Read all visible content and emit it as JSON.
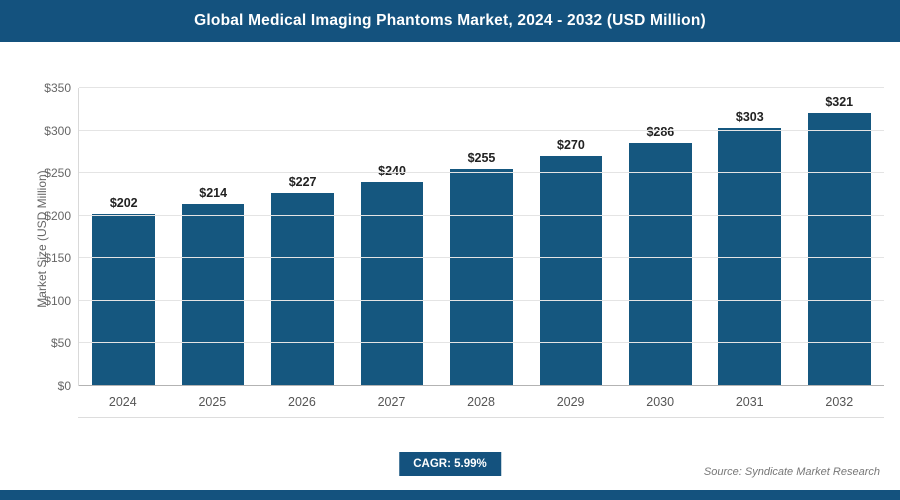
{
  "header": {
    "title": "Global Medical Imaging Phantoms Market, 2024 - 2032 (USD Million)"
  },
  "chart_data": {
    "type": "bar",
    "title": "Global Medical Imaging Phantoms Market, 2024 - 2032 (USD Million)",
    "categories": [
      "2024",
      "2025",
      "2026",
      "2027",
      "2028",
      "2029",
      "2030",
      "2031",
      "2032"
    ],
    "values": [
      202,
      214,
      227,
      240,
      255,
      270,
      286,
      303,
      321
    ],
    "value_labels": [
      "$202",
      "$214",
      "$227",
      "$240",
      "$255",
      "$270",
      "$286",
      "$303",
      "$321"
    ],
    "xlabel": "",
    "ylabel": "Market Size (USD Million)",
    "ylim": [
      0,
      350
    ],
    "yticks": [
      0,
      50,
      100,
      150,
      200,
      250,
      300,
      350
    ],
    "ytick_labels": [
      "$0",
      "$50",
      "$100",
      "$150",
      "$200",
      "$250",
      "$300",
      "$350"
    ],
    "bar_color": "#15577f",
    "grid": true,
    "legend": "none"
  },
  "footer": {
    "cagr_label": "CAGR: 5.99%",
    "source": "Source: Syndicate Market Research"
  },
  "colors": {
    "accent": "#14527e",
    "bar": "#15577f",
    "gridline": "#e4e4e4",
    "axis": "#b3b3b3"
  }
}
